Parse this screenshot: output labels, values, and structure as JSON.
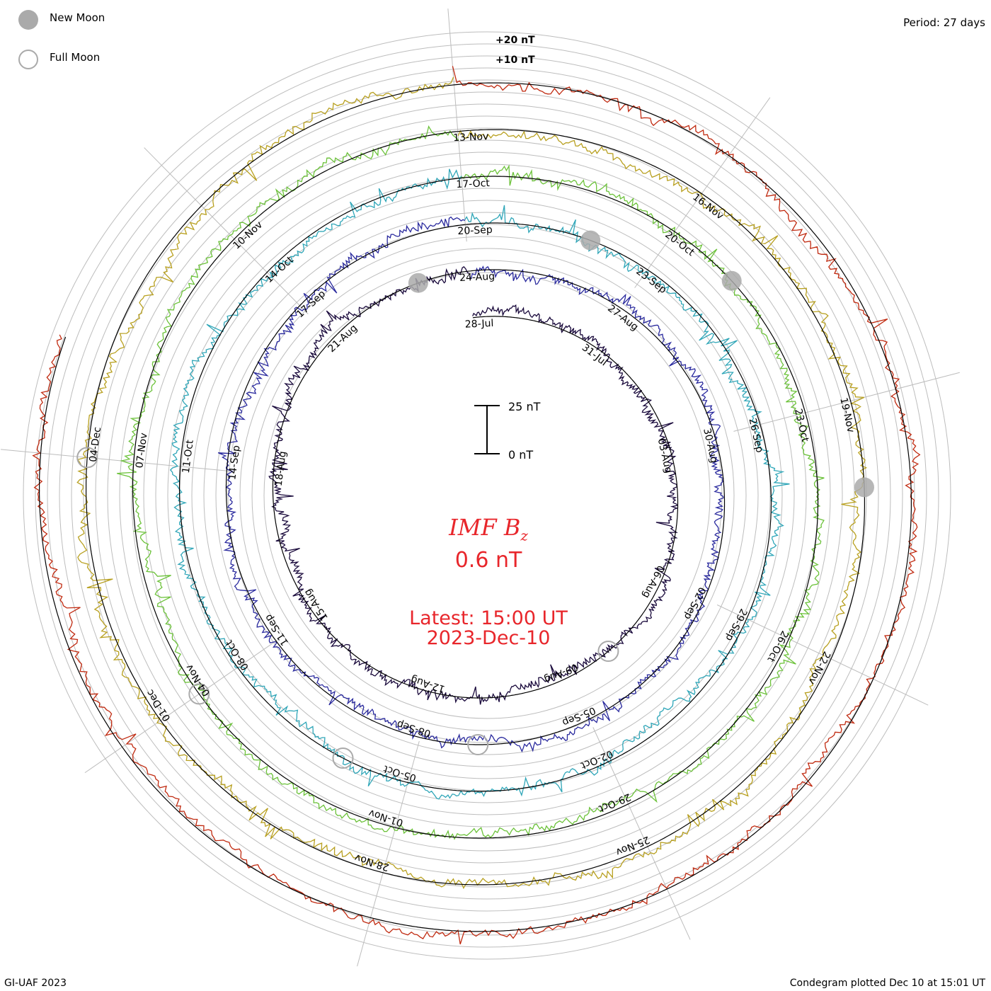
{
  "header": {
    "period": "Period: 27 days",
    "credit": "GI-UAF 2023",
    "plotted": "Condegram plotted Dec 10 at 15:01 UT"
  },
  "legend": {
    "new_moon": "New Moon",
    "full_moon": "Full Moon",
    "new_moon_color": "#aaaaaa",
    "full_moon_color": "#aaaaaa"
  },
  "center": {
    "parameter": "IMF B",
    "parameter_subscript": "z",
    "value": "0.6 nT",
    "latest": "Latest: 15:00 UT",
    "date": "2023-Dec-10",
    "accent_color": "#e8262b"
  },
  "chart_data": {
    "type": "line",
    "style": "condegram (spiral time series, one ring per 27-day solar rotation)",
    "title": "IMF Bz",
    "period_days": 27,
    "scale": {
      "bar_top": "25 nT",
      "bar_bottom": "0 nT",
      "ring_top": "+20 nT",
      "ring_second": "+10 nT"
    },
    "rotations": [
      {
        "color": "#1a0a3c",
        "start": "2023-07-21",
        "date_labels": [
          "28-Jul",
          "31-Jul",
          "03-Aug",
          "06-Aug",
          "09-Aug",
          "12-Aug",
          "15-Aug",
          "18-Aug",
          "21-Aug"
        ]
      },
      {
        "color": "#2a2a9e",
        "start": "2023-08-17",
        "date_labels": [
          "24-Aug",
          "27-Aug",
          "30-Aug",
          "02-Sep",
          "05-Sep",
          "08-Sep",
          "11-Sep",
          "14-Sep",
          "17-Sep"
        ]
      },
      {
        "color": "#2fa6b8",
        "start": "2023-09-13",
        "date_labels": [
          "20-Sep",
          "23-Sep",
          "26-Sep",
          "29-Sep",
          "02-Oct",
          "05-Oct",
          "08-Oct",
          "11-Oct",
          "14-Oct"
        ]
      },
      {
        "color": "#6cc23a",
        "start": "2023-10-10",
        "date_labels": [
          "17-Oct",
          "20-Oct",
          "23-Oct",
          "26-Oct",
          "29-Oct",
          "01-Nov",
          "04-Nov",
          "07-Nov",
          "10-Nov"
        ]
      },
      {
        "color": "#b8a020",
        "start": "2023-11-06",
        "date_labels": [
          "13-Nov",
          "16-Nov",
          "19-Nov",
          "22-Nov",
          "25-Nov",
          "28-Nov",
          "01-Dec",
          "04-Dec"
        ]
      },
      {
        "color": "#c02a10",
        "start": "2023-12-03",
        "date_labels": []
      }
    ],
    "moon_phases": [
      {
        "type": "new",
        "date": "2023-08-16"
      },
      {
        "type": "full",
        "date": "2023-08-01"
      },
      {
        "type": "full",
        "date": "2023-08-31"
      },
      {
        "type": "new",
        "date": "2023-09-15"
      },
      {
        "type": "full",
        "date": "2023-09-29"
      },
      {
        "type": "new",
        "date": "2023-10-14"
      },
      {
        "type": "full",
        "date": "2023-10-28"
      },
      {
        "type": "new",
        "date": "2023-11-13"
      },
      {
        "type": "full",
        "date": "2023-11-27"
      }
    ],
    "latest_value_nT": 0.6,
    "latest_time": "2023-12-10 15:00 UT",
    "grid": true
  }
}
